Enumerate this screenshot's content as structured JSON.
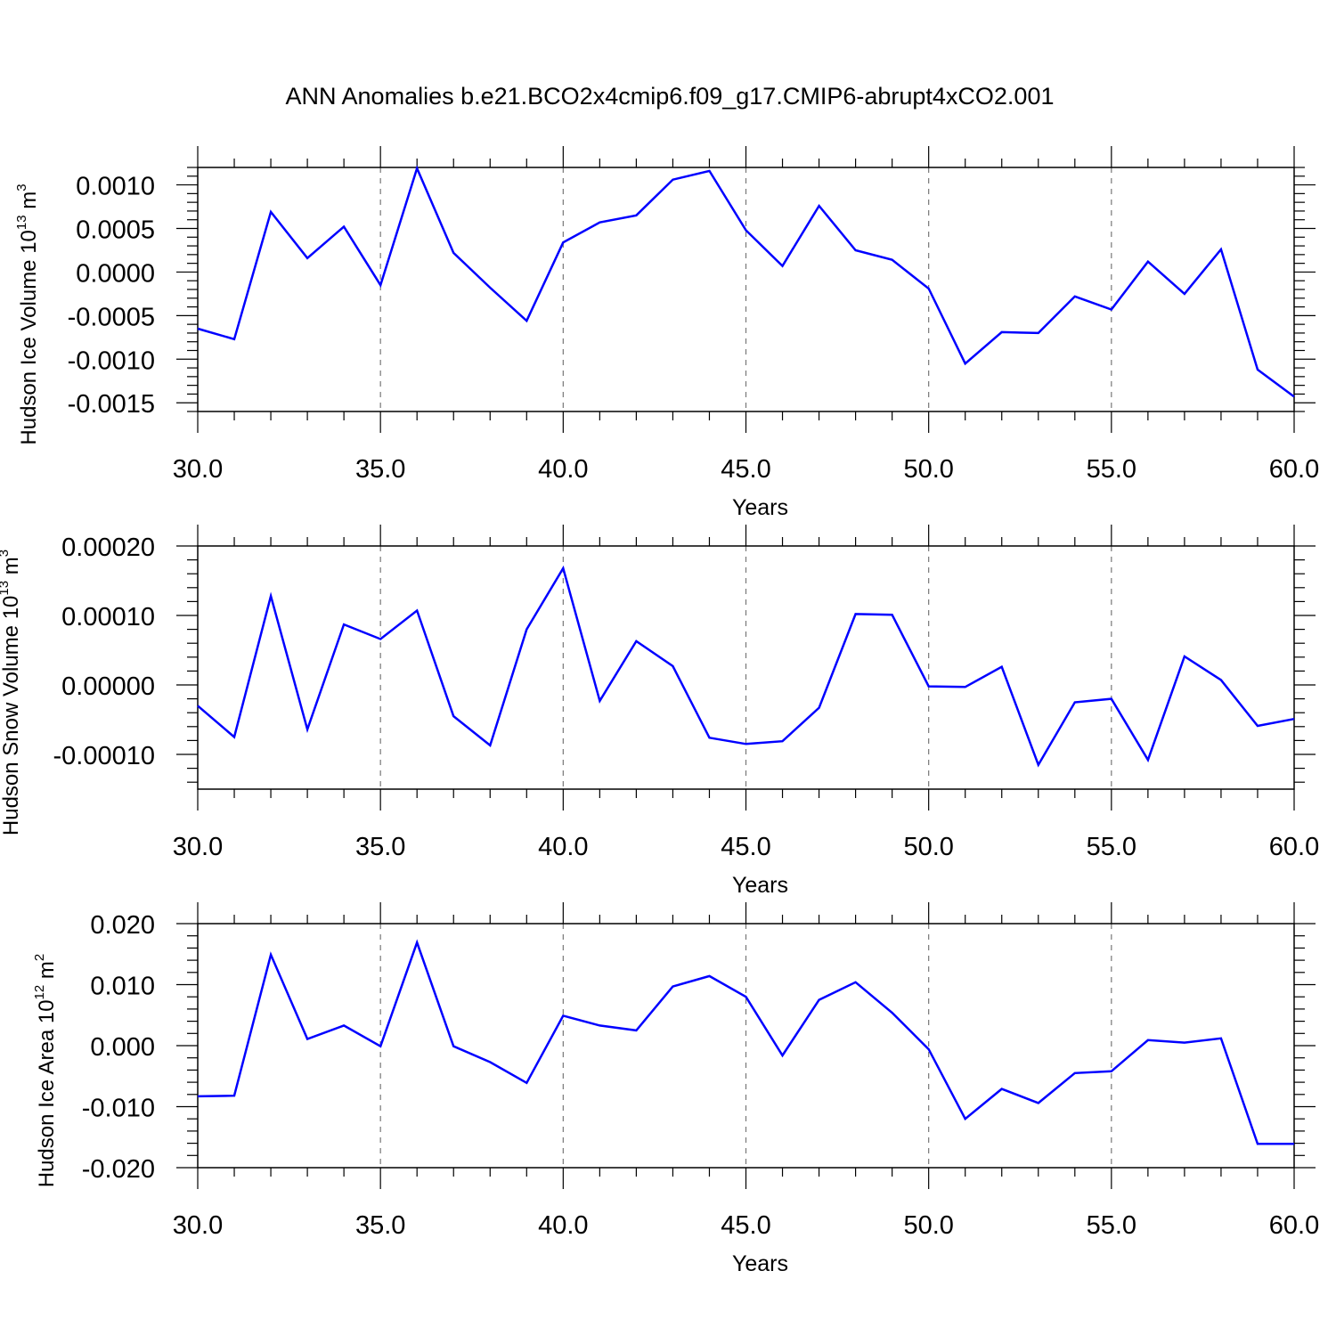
{
  "title": "ANN Anomalies b.e21.BCO2x4cmip6.f09_g17.CMIP6-abrupt4xCO2.001",
  "chart_data": [
    {
      "type": "line",
      "ylabel": {
        "prefix": "Hudson Ice Volume 10",
        "exponent": "13",
        "unit": " m",
        "unit_exponent": "3"
      },
      "xlabel": "Years",
      "xlim": [
        30,
        60
      ],
      "ylim": [
        -0.0016,
        0.0012
      ],
      "xticks": [
        30,
        35,
        40,
        45,
        50,
        55,
        60
      ],
      "xtick_labels": [
        "30.0",
        "35.0",
        "40.0",
        "45.0",
        "50.0",
        "55.0",
        "60.0"
      ],
      "yticks": [
        -0.0015,
        -0.001,
        -0.0005,
        0.0,
        0.0005,
        0.001
      ],
      "ytick_labels": [
        "-0.0015",
        "-0.0010",
        "-0.0005",
        "0.0000",
        "0.0005",
        "0.0010"
      ],
      "grid": "x-dashed",
      "color": "#0000ff",
      "x": [
        30,
        31,
        32,
        33,
        34,
        35,
        36,
        37,
        38,
        39,
        40,
        41,
        42,
        43,
        44,
        45,
        46,
        47,
        48,
        49,
        50,
        51,
        52,
        53,
        54,
        55,
        56,
        57,
        58,
        59,
        60
      ],
      "y": [
        -0.00065,
        -0.00077,
        0.00069,
        0.00016,
        0.00052,
        -0.00015,
        0.00119,
        0.00022,
        -0.00018,
        -0.00056,
        0.00034,
        0.00057,
        0.00065,
        0.00106,
        0.00116,
        0.00048,
        7e-05,
        0.00076,
        0.00025,
        0.00014,
        -0.00019,
        -0.00105,
        -0.00069,
        -0.0007,
        -0.00028,
        -0.00043,
        0.00012,
        -0.00025,
        0.00026,
        -0.00112,
        -0.00143
      ]
    },
    {
      "type": "line",
      "ylabel": {
        "prefix": "Hudson Snow Volume 10",
        "exponent": "13",
        "unit": " m",
        "unit_exponent": "3"
      },
      "xlabel": "Years",
      "xlim": [
        30,
        60
      ],
      "ylim": [
        -0.00015,
        0.0002
      ],
      "xticks": [
        30,
        35,
        40,
        45,
        50,
        55,
        60
      ],
      "xtick_labels": [
        "30.0",
        "35.0",
        "40.0",
        "45.0",
        "50.0",
        "55.0",
        "60.0"
      ],
      "yticks": [
        -0.0001,
        0.0,
        0.0001,
        0.0002
      ],
      "ytick_labels": [
        "-0.00010",
        "0.00000",
        "0.00010",
        "0.00020"
      ],
      "grid": "x-dashed",
      "color": "#0000ff",
      "x": [
        30,
        31,
        32,
        33,
        34,
        35,
        36,
        37,
        38,
        39,
        40,
        41,
        42,
        43,
        44,
        45,
        46,
        47,
        48,
        49,
        50,
        51,
        52,
        53,
        54,
        55,
        56,
        57,
        58,
        59,
        60
      ],
      "y": [
        -3e-05,
        -7.5e-05,
        0.000128,
        -6.4e-05,
        8.7e-05,
        6.6e-05,
        0.000107,
        -4.5e-05,
        -8.7e-05,
        8e-05,
        0.000168,
        -2.3e-05,
        6.3e-05,
        2.7e-05,
        -7.6e-05,
        -8.5e-05,
        -8.1e-05,
        -3.3e-05,
        0.000102,
        0.000101,
        -2e-06,
        -3e-06,
        2.6e-05,
        -0.000115,
        -2.5e-05,
        -2e-05,
        -0.000108,
        4.1e-05,
        7e-06,
        -5.9e-05,
        -4.9e-05
      ]
    },
    {
      "type": "line",
      "ylabel": {
        "prefix": "Hudson Ice Area 10",
        "exponent": "12",
        "unit": " m",
        "unit_exponent": "2"
      },
      "xlabel": "Years",
      "xlim": [
        30,
        60
      ],
      "ylim": [
        -0.02,
        0.02
      ],
      "xticks": [
        30,
        35,
        40,
        45,
        50,
        55,
        60
      ],
      "xtick_labels": [
        "30.0",
        "35.0",
        "40.0",
        "45.0",
        "50.0",
        "55.0",
        "60.0"
      ],
      "yticks": [
        -0.02,
        -0.01,
        0.0,
        0.01,
        0.02
      ],
      "ytick_labels": [
        "-0.020",
        "-0.010",
        "0.000",
        "0.010",
        "0.020"
      ],
      "grid": "x-dashed",
      "color": "#0000ff",
      "x": [
        30,
        31,
        32,
        33,
        34,
        35,
        36,
        37,
        38,
        39,
        40,
        41,
        42,
        43,
        44,
        45,
        46,
        47,
        48,
        49,
        50,
        51,
        52,
        53,
        54,
        55,
        56,
        57,
        58,
        59,
        60
      ],
      "y": [
        -0.0083,
        -0.0082,
        0.0149,
        0.0011,
        0.0033,
        -0.0001,
        0.0169,
        -0.0001,
        -0.0027,
        -0.0061,
        0.0049,
        0.0033,
        0.0025,
        0.0097,
        0.0114,
        0.008,
        -0.0016,
        0.0075,
        0.0104,
        0.0054,
        -0.0006,
        -0.012,
        -0.0071,
        -0.0094,
        -0.0045,
        -0.0042,
        0.0009,
        0.0005,
        0.0012,
        -0.0161,
        -0.0161
      ]
    }
  ]
}
